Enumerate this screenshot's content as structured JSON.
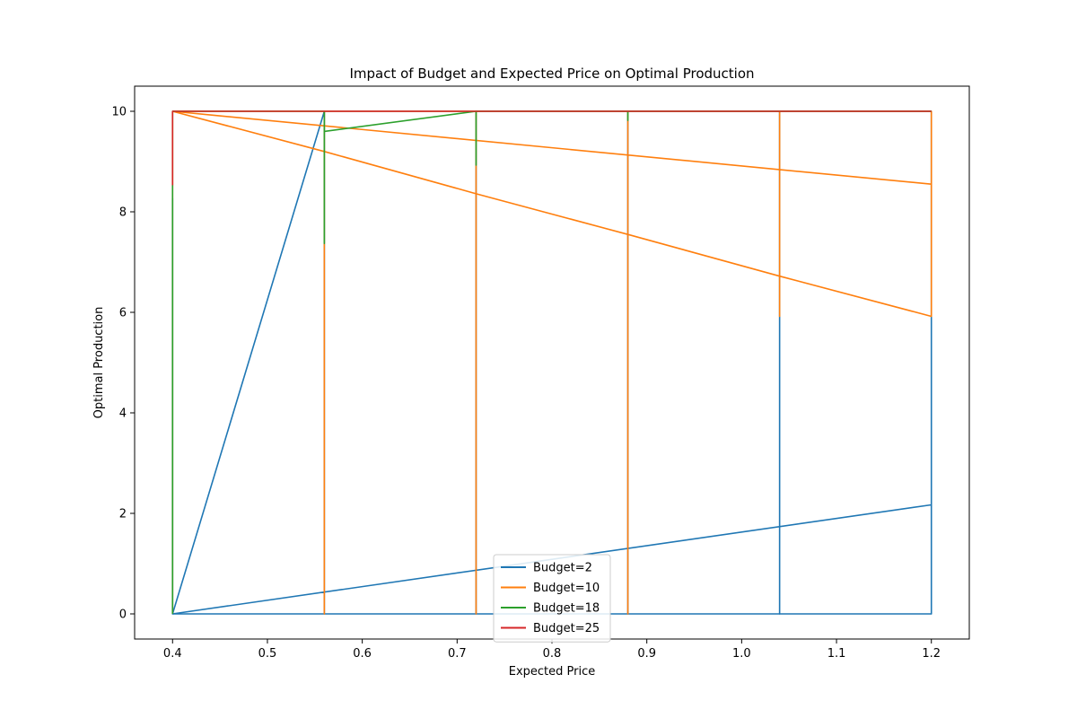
{
  "chart_data": {
    "type": "line",
    "title": "Impact of Budget and Expected Price on Optimal Production",
    "xlabel": "Expected Price",
    "ylabel": "Optimal Production",
    "xlim": [
      0.36,
      1.24
    ],
    "ylim": [
      -0.5,
      10.5
    ],
    "xticks": [
      0.4,
      0.5,
      0.6,
      0.7,
      0.8,
      0.9,
      1.0,
      1.1,
      1.2
    ],
    "xtick_labels": [
      "0.4",
      "0.5",
      "0.6",
      "0.7",
      "0.8",
      "0.9",
      "1.0",
      "1.1",
      "1.2"
    ],
    "yticks": [
      0,
      2,
      4,
      6,
      8,
      10
    ],
    "ytick_labels": [
      "0",
      "2",
      "4",
      "6",
      "8",
      "10"
    ],
    "grid": false,
    "legend": {
      "placement": "lower-center"
    },
    "series": [
      {
        "name": "Budget=2",
        "color": "#1f77b4",
        "x": [
          0.4,
          0.4,
          0.4,
          0.4,
          0.4,
          0.56,
          0.56,
          0.56,
          0.56,
          0.56,
          0.56,
          0.72,
          0.72,
          0.72,
          0.72,
          0.72,
          0.72,
          0.72,
          0.72,
          0.88,
          0.88,
          0.88,
          0.88,
          0.88,
          0.88,
          0.88,
          0.88,
          0.88,
          1.04,
          1.04,
          1.04,
          1.04,
          1.04,
          1.04,
          1.04,
          1.04,
          1.04,
          1.2,
          1.2,
          1.2,
          1.2,
          1.2,
          1.2,
          1.2,
          0.4
        ],
        "y": [
          0,
          5.76,
          0,
          8.27,
          0,
          10,
          0,
          8.5,
          5.05,
          3.65,
          10,
          10,
          0,
          7.05,
          6.9,
          4.9,
          3.1,
          3.8,
          10,
          10,
          0,
          3.15,
          8.65,
          5.8,
          4.1,
          3.6,
          0,
          10,
          10,
          0,
          9.5,
          4.03,
          6.23,
          4.78,
          2.9,
          2.17,
          10,
          10,
          0,
          9.5,
          4.03,
          5.9,
          4.77,
          2.17,
          0
        ],
        "connect_x": [
          0.4,
          0.56,
          0.72,
          0.88,
          1.04,
          1.2
        ],
        "connect_y": [
          0,
          0,
          0,
          0,
          0,
          0
        ]
      },
      {
        "name": "Budget=10",
        "color": "#ff7f0e",
        "x": [
          0.4,
          0.4,
          0.4,
          0.56,
          0.56,
          0.56,
          0.56,
          0.56,
          0.56,
          0.72,
          0.72,
          0.72,
          0.72,
          0.72,
          0.72,
          0.72,
          0.88,
          0.88,
          0.88,
          0.88,
          0.88,
          0.88,
          0.88,
          1.04,
          1.04,
          1.04,
          1.04,
          1.04,
          1.04,
          1.2,
          1.2,
          1.2,
          1.2,
          0.4
        ],
        "y": [
          0,
          5.45,
          10,
          10,
          0,
          4.5,
          6.2,
          7.4,
          10,
          10,
          0,
          3.85,
          6.1,
          7.5,
          8.3,
          10,
          10,
          0,
          5.15,
          7.2,
          8.25,
          8.78,
          10,
          10,
          5.92,
          7.74,
          8.56,
          8.97,
          10,
          10,
          5.92,
          7.72,
          8.55,
          10
        ],
        "fan_x": [
          0.4,
          0.56,
          0.72,
          0.88,
          1.04,
          1.2
        ],
        "fan_y": [
          10,
          9.2,
          8.36,
          7.55,
          6.72,
          5.92
        ]
      },
      {
        "name": "Budget=18",
        "color": "#2ca02c",
        "x": [
          0.4,
          0.4,
          0.4,
          0.4,
          0.4,
          0.56,
          0.56,
          0.56,
          0.56,
          0.72,
          0.72,
          0.72,
          0.72,
          0.88,
          0.88,
          0.88,
          1.04,
          1.2
        ],
        "y": [
          0,
          6.47,
          7.8,
          8.78,
          10,
          10,
          7.37,
          8.75,
          9.6,
          10,
          8.93,
          9.88,
          10,
          10,
          9.82,
          10,
          10,
          10
        ]
      },
      {
        "name": "Budget=25",
        "color": "#d62728",
        "x": [
          0.4,
          0.4,
          0.4,
          0.56,
          0.72,
          0.88,
          1.04,
          1.2
        ],
        "y": [
          8.53,
          9.73,
          10,
          10,
          10,
          10,
          10,
          10
        ]
      }
    ]
  }
}
